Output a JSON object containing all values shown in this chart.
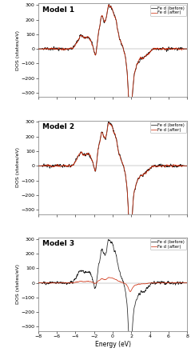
{
  "title1": "Model 1",
  "title2": "Model 2",
  "title3": "Model 3",
  "xlabel": "Energy (eV)",
  "ylabel": "DOS (states/eV)",
  "legend_before": "Fe d (before)",
  "legend_after": "Fe d (after)",
  "color_before": "#222222",
  "color_after": "#cc2200",
  "xlim": [
    -8,
    8
  ],
  "ylim": [
    -330,
    310
  ],
  "xticks": [
    -8,
    -6,
    -4,
    -2,
    0,
    2,
    4,
    6,
    8
  ],
  "yticks": [
    -300,
    -200,
    -100,
    0,
    100,
    200,
    300
  ]
}
